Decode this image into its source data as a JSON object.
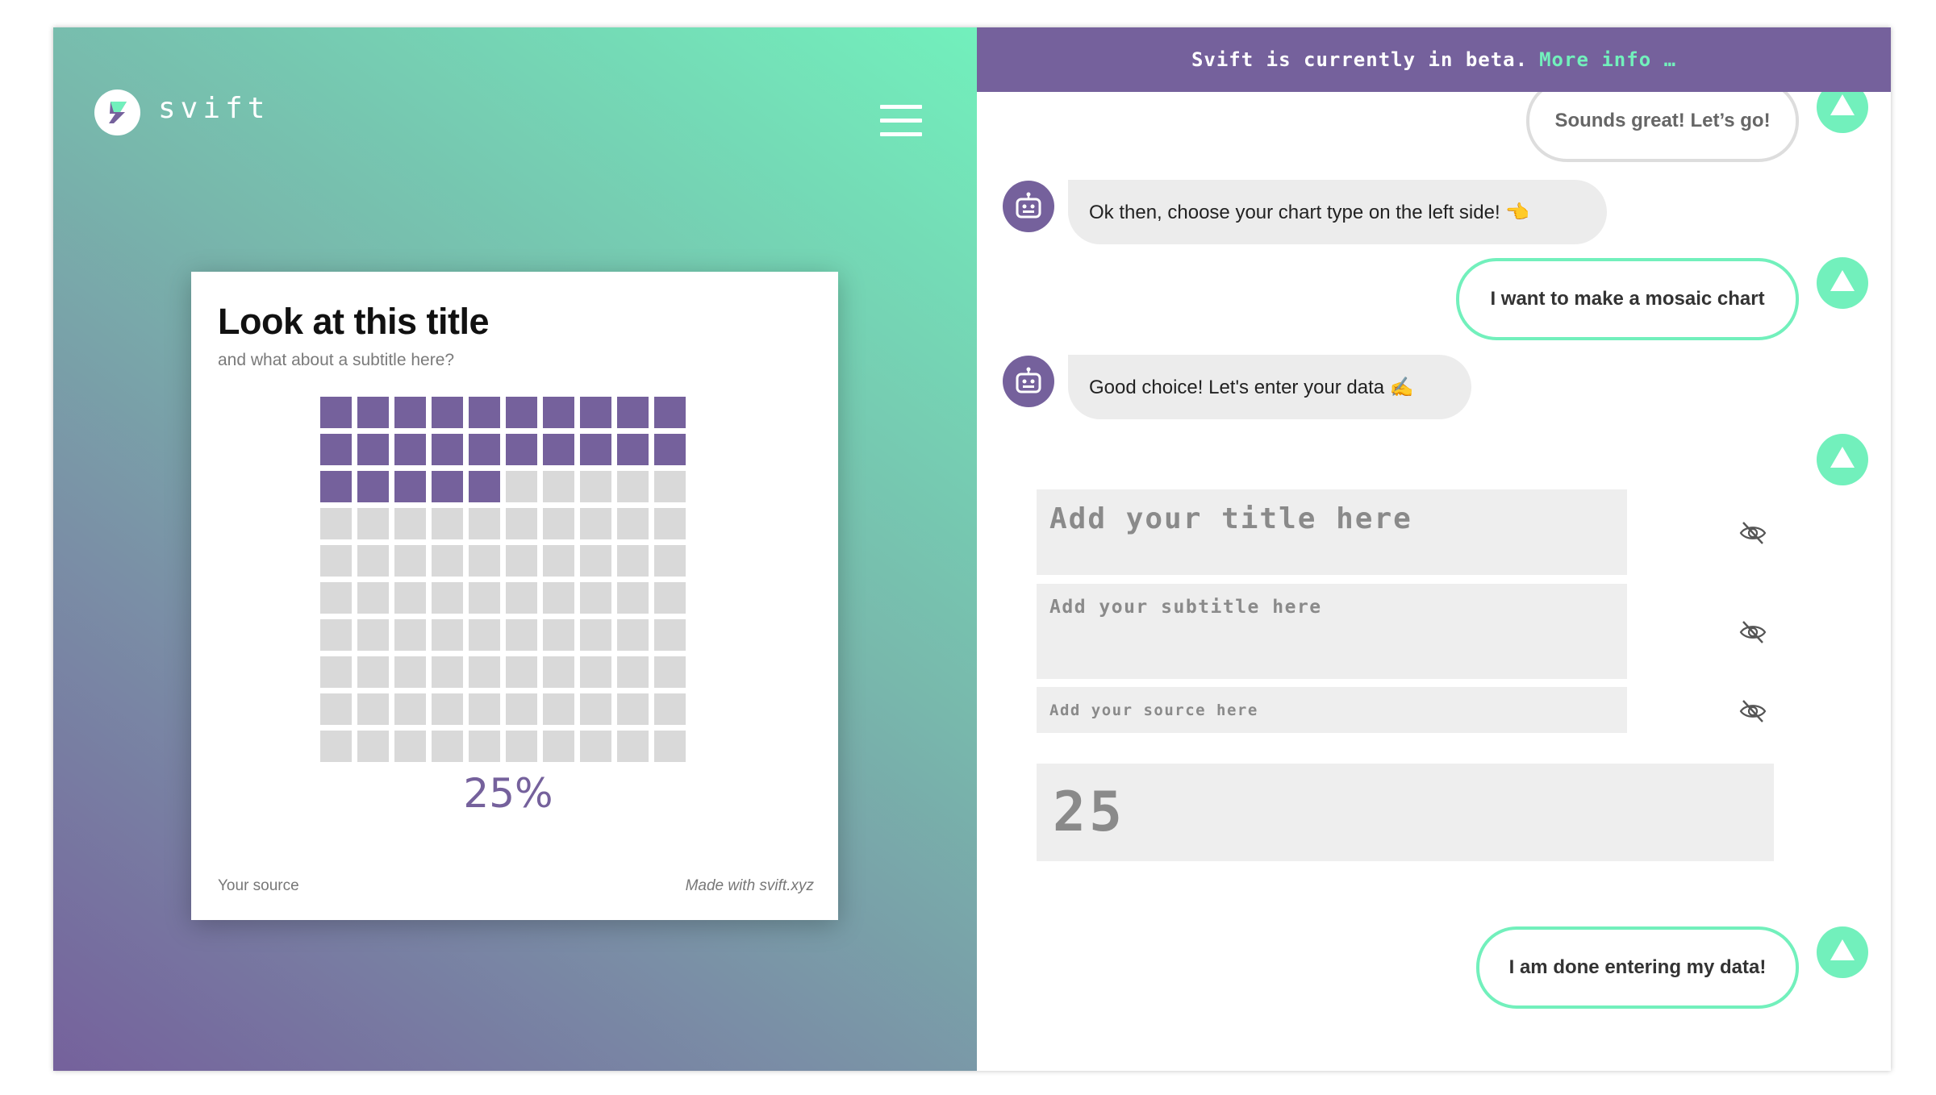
{
  "brand": {
    "name": "svift"
  },
  "card": {
    "title": "Look at this title",
    "subtitle": "and what about a subtitle here?",
    "percent_label": "25%",
    "source": "Your source",
    "made_with": "Made with svift.xyz"
  },
  "chart_data": {
    "type": "mosaic",
    "value": 25,
    "total_cells": 100,
    "filled_cells": 25,
    "columns": 10,
    "rows": 10,
    "label": "25%",
    "fill_color": "#75619c",
    "empty_color": "#d9d9d9"
  },
  "beta_bar": {
    "text": "Svift is currently in beta.",
    "link": "More info …"
  },
  "chat": {
    "msg_user_1": "Sounds great! Let’s go!",
    "msg_bot_1": "Ok then, choose your chart type on the left side! 👈",
    "msg_user_2": "I want to make a mosaic chart",
    "msg_bot_2": "Good choice! Let's enter your data ✍️",
    "msg_user_3": "I am done entering my data!"
  },
  "form": {
    "title_placeholder": "Add your title here",
    "subtitle_placeholder": "Add your subtitle here",
    "source_placeholder": "Add your source here",
    "value": "25"
  },
  "colors": {
    "purple": "#75619c",
    "mint": "#72f0bc",
    "bubble_grey": "#ececec"
  },
  "icons": [
    "logo-icon",
    "menu-icon",
    "robot-icon",
    "arrow-up-icon",
    "eye-off-icon"
  ]
}
